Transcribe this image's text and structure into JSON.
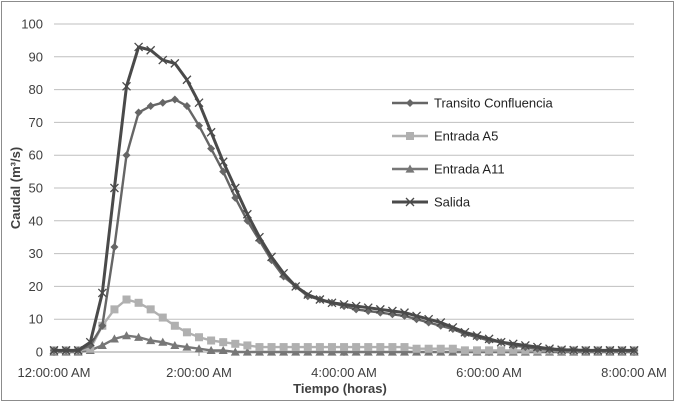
{
  "chart_data": {
    "type": "line",
    "title": "",
    "xlabel": "Tiempo (horas)",
    "ylabel": "Caudal (m³/s)",
    "ylim": [
      0,
      100
    ],
    "yticks": [
      0,
      10,
      20,
      30,
      40,
      50,
      60,
      70,
      80,
      90,
      100
    ],
    "xlim_hours": [
      0,
      8
    ],
    "xticks": [
      {
        "hour": 0,
        "label": "12:00:00 AM"
      },
      {
        "hour": 2,
        "label": "2:00:00 AM"
      },
      {
        "hour": 4,
        "label": "4:00:00 AM"
      },
      {
        "hour": 6,
        "label": "6:00:00 AM"
      },
      {
        "hour": 8,
        "label": "8:00:00 AM"
      }
    ],
    "x_step_hours": 0.1667,
    "grid": "horizontal",
    "legend_position": "right",
    "series": [
      {
        "name": "Transito Confluencia",
        "color": "#666666",
        "marker": "diamond",
        "values": [
          0.5,
          0.5,
          0.5,
          2,
          8,
          32,
          60,
          73,
          75,
          76,
          77,
          75,
          69,
          62,
          55,
          47,
          40,
          34,
          28,
          23,
          20,
          17,
          16,
          15,
          14,
          13,
          12.5,
          12,
          11.5,
          11,
          10,
          9,
          8,
          7,
          5.5,
          4.5,
          3.5,
          3,
          2,
          1.5,
          1,
          0.7,
          0.5,
          0.5,
          0.5,
          0.5,
          0.5,
          0.5,
          0.5
        ]
      },
      {
        "name": "Entrada A5",
        "color": "#b0b0b0",
        "marker": "square",
        "values": [
          0.5,
          0.5,
          0.5,
          1,
          8,
          13,
          16,
          15,
          13,
          10.5,
          8,
          6,
          4.5,
          3.5,
          3,
          2.5,
          2,
          1.5,
          1.5,
          1.5,
          1.5,
          1.5,
          1.5,
          1.5,
          1.5,
          1.5,
          1.5,
          1.5,
          1.5,
          1.5,
          1,
          1,
          1,
          1,
          0.5,
          0.5,
          0.5,
          0.5,
          0.5,
          0.5,
          0.5,
          0.5,
          0.5,
          0.5,
          0.5,
          0.5,
          0.5,
          0.5,
          0.5
        ]
      },
      {
        "name": "Entrada A11",
        "color": "#777777",
        "marker": "triangle",
        "values": [
          0,
          0,
          0,
          0.5,
          2,
          4,
          5,
          4.5,
          3.5,
          3,
          2,
          1.5,
          1,
          0.5,
          0.5,
          0,
          0,
          0,
          0,
          0,
          0,
          0,
          0,
          0,
          0,
          0,
          0,
          0,
          0,
          0,
          0,
          0,
          0,
          0,
          0,
          0,
          0,
          0,
          0,
          0,
          0,
          0,
          0,
          0,
          0,
          0,
          0,
          0,
          0
        ]
      },
      {
        "name": "Salida",
        "color": "#4a4a4a",
        "marker": "x",
        "values": [
          0.5,
          0.5,
          0.5,
          3,
          18,
          50,
          81,
          93,
          92,
          89,
          88,
          83,
          76,
          67,
          58,
          50,
          42,
          35,
          29,
          24,
          20,
          17.5,
          16,
          15,
          14.5,
          14,
          13.5,
          13,
          12.5,
          12,
          11,
          10,
          9,
          7.5,
          6,
          5,
          4,
          3,
          2.5,
          2,
          1.5,
          1,
          0.7,
          0.6,
          0.5,
          0.5,
          0.5,
          0.5,
          0.5
        ]
      }
    ]
  }
}
